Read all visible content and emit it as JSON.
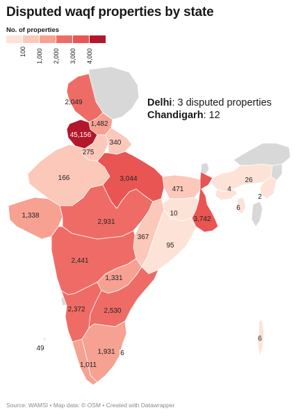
{
  "title": "Disputed waqf properties by state",
  "legend": {
    "title": "No. of properties",
    "ticks": [
      "100",
      "1,000",
      "2,000",
      "3,000",
      "4,000"
    ],
    "colors": [
      "#fde3d7",
      "#fbc8b9",
      "#f6a192",
      "#ef6c66",
      "#e85552",
      "#b3172b"
    ]
  },
  "notes": [
    {
      "name": "Delhi",
      "value": ": 3 disputed properties"
    },
    {
      "name": "Chandigarh",
      "value": ": 12"
    }
  ],
  "source": "Source: WAMSI • Map data: © OSM  • Created with Datawrapper",
  "colors": {
    "no_data": "#d8d8d8",
    "border": "#ffffff",
    "title": "#181818",
    "source": "#8a8a8a"
  },
  "states": [
    {
      "key": "jk",
      "value": 2049,
      "label": "2,049"
    },
    {
      "key": "hp",
      "value": 1482,
      "label": "1,482"
    },
    {
      "key": "punjab",
      "value": 45156,
      "label": "45,156"
    },
    {
      "key": "haryana",
      "value": 275,
      "label": "275"
    },
    {
      "key": "uttarakhand",
      "value": 340,
      "label": "340"
    },
    {
      "key": "rajasthan",
      "value": 166,
      "label": "166"
    },
    {
      "key": "up",
      "value": 3044,
      "label": "3,044"
    },
    {
      "key": "bihar",
      "value": 471,
      "label": "471"
    },
    {
      "key": "wb",
      "value": 3742,
      "label": "3,742"
    },
    {
      "key": "jharkhand",
      "value": 10,
      "label": "10"
    },
    {
      "key": "gujarat",
      "value": 1338,
      "label": "1,338"
    },
    {
      "key": "mp",
      "value": 2931,
      "label": "2,931"
    },
    {
      "key": "chhattisgarh",
      "value": 367,
      "label": "367"
    },
    {
      "key": "odisha",
      "value": 95,
      "label": "95"
    },
    {
      "key": "maharashtra",
      "value": 2441,
      "label": "2,441"
    },
    {
      "key": "telangana",
      "value": 1331,
      "label": "1,331"
    },
    {
      "key": "karnataka",
      "value": 2372,
      "label": "2,372"
    },
    {
      "key": "ap",
      "value": 2530,
      "label": "2,530"
    },
    {
      "key": "tn",
      "value": 1931,
      "label": "1,931"
    },
    {
      "key": "puducherry",
      "value": 6,
      "label": "6"
    },
    {
      "key": "kerala",
      "value": 1011,
      "label": "1,011"
    },
    {
      "key": "lakshadweep",
      "value": 49,
      "label": "49"
    },
    {
      "key": "andaman",
      "value": 6,
      "label": "6"
    },
    {
      "key": "assam",
      "value": 26,
      "label": "26"
    },
    {
      "key": "meghalaya",
      "value": 4,
      "label": "4"
    },
    {
      "key": "manipur",
      "value": 2,
      "label": "2"
    },
    {
      "key": "tripura",
      "value": 6,
      "label": "6"
    }
  ],
  "no_data_regions": [
    "ladakh",
    "sikkim",
    "arunachal",
    "nagaland",
    "mizoram",
    "goa"
  ]
}
